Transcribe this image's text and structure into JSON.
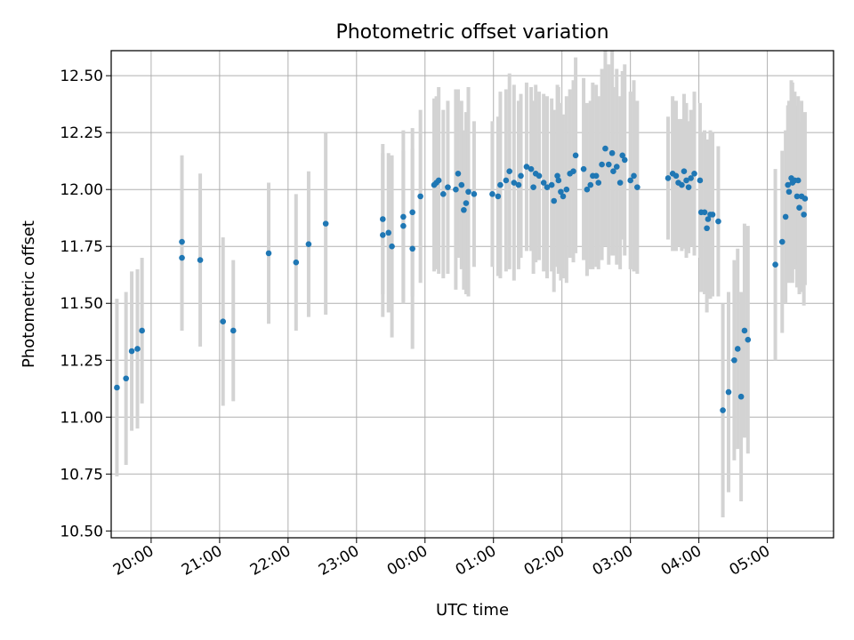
{
  "chart_data": {
    "type": "scatter",
    "title": "Photometric offset variation",
    "xlabel": "UTC time",
    "ylabel": "Photometric offset",
    "x_unit": "UTC time (hours, continuing past midnight)",
    "xlim": [
      "19:25",
      "05:58"
    ],
    "ylim": [
      10.47,
      12.61
    ],
    "x_ticks": [
      "20:00",
      "21:00",
      "22:00",
      "23:00",
      "00:00",
      "01:00",
      "02:00",
      "03:00",
      "04:00",
      "05:00"
    ],
    "y_ticks": [
      "10.50",
      "10.75",
      "11.00",
      "11.25",
      "11.50",
      "11.75",
      "12.00",
      "12.25",
      "12.50"
    ],
    "grid": true,
    "marker_color": "#1f77b4",
    "errorbar_color": "#d3d3d3",
    "series": [
      {
        "points": [
          [
            "19:30",
            11.13,
            0.39
          ],
          [
            "19:38",
            11.17,
            0.38
          ],
          [
            "19:43",
            11.29,
            0.35
          ],
          [
            "19:48",
            11.3,
            0.35
          ],
          [
            "19:52",
            11.38,
            0.32
          ],
          [
            "20:27",
            11.7,
            0.32
          ],
          [
            "20:27",
            11.77,
            0.38
          ],
          [
            "20:43",
            11.69,
            0.38
          ],
          [
            "21:03",
            11.42,
            0.37
          ],
          [
            "21:12",
            11.38,
            0.31
          ],
          [
            "21:43",
            11.72,
            0.31
          ],
          [
            "22:07",
            11.68,
            0.3
          ],
          [
            "22:18",
            11.76,
            0.32
          ],
          [
            "22:33",
            11.85,
            0.4
          ],
          [
            "23:23",
            11.8,
            0.36
          ],
          [
            "23:23",
            11.87,
            0.33
          ],
          [
            "23:28",
            11.81,
            0.35
          ],
          [
            "23:31",
            11.75,
            0.4
          ],
          [
            "23:41",
            11.84,
            0.33
          ],
          [
            "23:41",
            11.88,
            0.38
          ],
          [
            "23:49",
            11.74,
            0.44
          ],
          [
            "23:49",
            11.9,
            0.37
          ],
          [
            "23:56",
            11.97,
            0.38
          ],
          [
            "00:08",
            12.02,
            0.38
          ],
          [
            "00:10",
            12.03,
            0.38
          ],
          [
            "00:12",
            12.04,
            0.41
          ],
          [
            "00:16",
            11.98,
            0.37
          ],
          [
            "00:20",
            12.01,
            0.38
          ],
          [
            "00:27",
            12.0,
            0.44
          ],
          [
            "00:29",
            12.07,
            0.37
          ],
          [
            "00:32",
            12.02,
            0.37
          ],
          [
            "00:34",
            11.91,
            0.35
          ],
          [
            "00:36",
            11.94,
            0.4
          ],
          [
            "00:38",
            11.99,
            0.46
          ],
          [
            "00:43",
            11.98,
            0.32
          ],
          [
            "00:59",
            11.98,
            0.32
          ],
          [
            "01:04",
            11.97,
            0.35
          ],
          [
            "01:06",
            12.02,
            0.41
          ],
          [
            "01:11",
            12.04,
            0.4
          ],
          [
            "01:14",
            12.08,
            0.43
          ],
          [
            "01:18",
            12.03,
            0.43
          ],
          [
            "01:22",
            12.02,
            0.37
          ],
          [
            "01:24",
            12.06,
            0.36
          ],
          [
            "01:29",
            12.1,
            0.37
          ],
          [
            "01:33",
            12.09,
            0.36
          ],
          [
            "01:35",
            12.01,
            0.38
          ],
          [
            "01:37",
            12.07,
            0.39
          ],
          [
            "01:40",
            12.06,
            0.37
          ],
          [
            "01:44",
            12.03,
            0.39
          ],
          [
            "01:47",
            12.01,
            0.4
          ],
          [
            "01:51",
            12.02,
            0.38
          ],
          [
            "01:53",
            11.95,
            0.4
          ],
          [
            "01:56",
            12.06,
            0.4
          ],
          [
            "01:57",
            12.04,
            0.41
          ],
          [
            "01:59",
            11.99,
            0.39
          ],
          [
            "02:01",
            11.97,
            0.36
          ],
          [
            "02:04",
            12.0,
            0.41
          ],
          [
            "02:07",
            12.07,
            0.37
          ],
          [
            "02:10",
            12.08,
            0.4
          ],
          [
            "02:12",
            12.15,
            0.43
          ],
          [
            "02:19",
            12.09,
            0.4
          ],
          [
            "02:22",
            12.0,
            0.38
          ],
          [
            "02:25",
            12.02,
            0.37
          ],
          [
            "02:27",
            12.06,
            0.41
          ],
          [
            "02:30",
            12.06,
            0.4
          ],
          [
            "02:32",
            12.03,
            0.38
          ],
          [
            "02:35",
            12.11,
            0.42
          ],
          [
            "02:38",
            12.18,
            0.43
          ],
          [
            "02:41",
            12.11,
            0.44
          ],
          [
            "02:44",
            12.16,
            0.45
          ],
          [
            "02:45",
            12.08,
            0.37
          ],
          [
            "02:48",
            12.1,
            0.43
          ],
          [
            "02:51",
            12.03,
            0.38
          ],
          [
            "02:53",
            12.15,
            0.37
          ],
          [
            "02:55",
            12.13,
            0.42
          ],
          [
            "03:00",
            12.04,
            0.39
          ],
          [
            "03:03",
            12.06,
            0.42
          ],
          [
            "03:06",
            12.01,
            0.38
          ],
          [
            "03:33",
            12.05,
            0.27
          ],
          [
            "03:37",
            12.07,
            0.34
          ],
          [
            "03:40",
            12.06,
            0.33
          ],
          [
            "03:42",
            12.03,
            0.28
          ],
          [
            "03:45",
            12.02,
            0.29
          ],
          [
            "03:47",
            12.08,
            0.34
          ],
          [
            "03:49",
            12.04,
            0.34
          ],
          [
            "03:51",
            12.01,
            0.29
          ],
          [
            "03:53",
            12.05,
            0.3
          ],
          [
            "03:56",
            12.07,
            0.36
          ],
          [
            "04:01",
            12.04,
            0.34
          ],
          [
            "04:02",
            11.9,
            0.35
          ],
          [
            "04:05",
            11.9,
            0.36
          ],
          [
            "04:07",
            11.83,
            0.37
          ],
          [
            "04:08",
            11.87,
            0.35
          ],
          [
            "04:10",
            11.89,
            0.37
          ],
          [
            "04:12",
            11.89,
            0.36
          ],
          [
            "04:17",
            11.86,
            0.33
          ],
          [
            "04:21",
            11.03,
            0.47
          ],
          [
            "04:26",
            11.11,
            0.44
          ],
          [
            "04:31",
            11.25,
            0.44
          ],
          [
            "04:34",
            11.3,
            0.44
          ],
          [
            "04:37",
            11.09,
            0.46
          ],
          [
            "04:40",
            11.38,
            0.47
          ],
          [
            "04:43",
            11.34,
            0.5
          ],
          [
            "05:07",
            11.67,
            0.42
          ],
          [
            "05:13",
            11.77,
            0.4
          ],
          [
            "05:16",
            11.88,
            0.38
          ],
          [
            "05:18",
            12.02,
            0.35
          ],
          [
            "05:19",
            11.99,
            0.4
          ],
          [
            "05:21",
            12.05,
            0.43
          ],
          [
            "05:22",
            12.03,
            0.44
          ],
          [
            "05:24",
            12.04,
            0.39
          ],
          [
            "05:26",
            11.97,
            0.4
          ],
          [
            "05:27",
            12.04,
            0.37
          ],
          [
            "05:28",
            11.92,
            0.38
          ],
          [
            "05:30",
            11.97,
            0.42
          ],
          [
            "05:32",
            11.89,
            0.4
          ],
          [
            "05:33",
            11.96,
            0.38
          ]
        ]
      }
    ]
  }
}
